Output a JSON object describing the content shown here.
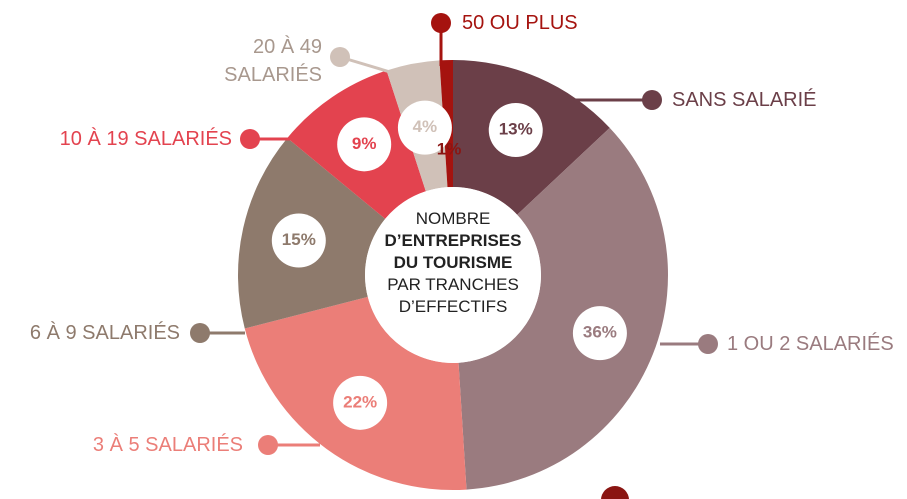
{
  "chart_data": {
    "type": "donut",
    "categories": [
      "SANS SALARIÉ",
      "1 OU 2 SALARIÉS",
      "3 À 5 SALARIÉS",
      "6 À 9 SALARIÉS",
      "10 À 19 SALARIÉS",
      "20 À 49 SALARIÉS",
      "50 OU PLUS"
    ],
    "values": [
      13,
      36,
      22,
      15,
      9,
      4,
      1
    ],
    "value_labels": [
      "13%",
      "36%",
      "22%",
      "15%",
      "9%",
      "4%",
      "1%"
    ],
    "colors": [
      "#6b3f48",
      "#9a7b7f",
      "#eb7e78",
      "#8e7a6c",
      "#e3434f",
      "#d0c1b8",
      "#a5130f"
    ],
    "center_text": [
      "NOMBRE",
      "D’ENTREPRISES",
      "DU TOURISME",
      "PAR TRANCHES",
      "D’EFFECTIFS"
    ],
    "center_bold": [
      false,
      true,
      true,
      false,
      false
    ]
  }
}
